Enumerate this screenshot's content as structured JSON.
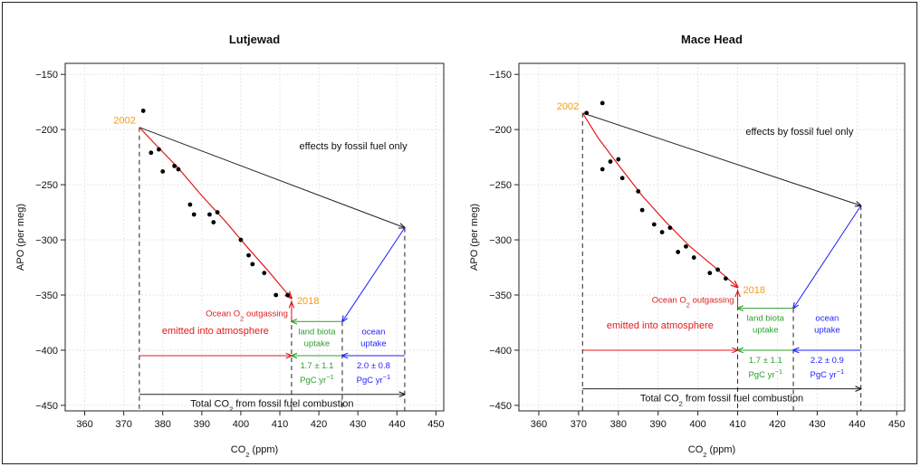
{
  "colors": {
    "fossil": "#222222",
    "atmosphere": "#e31a1c",
    "land": "#2ca02c",
    "ocean": "#1f1fff",
    "year": "#f39c12",
    "points": "#000000"
  },
  "chart_data": [
    {
      "type": "scatter",
      "title": "Lutjewad",
      "xlabel_main": "CO",
      "xlabel_sub": "2",
      "xlabel_unit": " (ppm)",
      "ylabel": "APO (per meg)",
      "xlim": [
        355,
        452
      ],
      "ylim": [
        -455,
        -140
      ],
      "xticks": [
        360,
        370,
        380,
        390,
        400,
        410,
        420,
        430,
        440,
        450
      ],
      "yticks": [
        -150,
        -200,
        -250,
        -300,
        -350,
        -400,
        -450
      ],
      "grid": true,
      "points": [
        {
          "x": 375,
          "y": -183
        },
        {
          "x": 377,
          "y": -221
        },
        {
          "x": 379,
          "y": -218
        },
        {
          "x": 380,
          "y": -238
        },
        {
          "x": 383,
          "y": -233
        },
        {
          "x": 384,
          "y": -236
        },
        {
          "x": 387,
          "y": -268
        },
        {
          "x": 388,
          "y": -277
        },
        {
          "x": 392,
          "y": -277
        },
        {
          "x": 393,
          "y": -284
        },
        {
          "x": 394,
          "y": -275
        },
        {
          "x": 400,
          "y": -300
        },
        {
          "x": 402,
          "y": -314
        },
        {
          "x": 403,
          "y": -322
        },
        {
          "x": 406,
          "y": -330
        },
        {
          "x": 409,
          "y": -350
        },
        {
          "x": 412,
          "y": -350
        }
      ],
      "fit_line": [
        [
          374,
          -198
        ],
        [
          378,
          -213
        ],
        [
          384,
          -235
        ],
        [
          390,
          -260
        ],
        [
          396,
          -283
        ],
        [
          402,
          -308
        ],
        [
          407,
          -328
        ],
        [
          411,
          -345
        ],
        [
          413,
          -353
        ]
      ],
      "start": {
        "x": 374,
        "y": -198,
        "label": "2002"
      },
      "end": {
        "x": 413,
        "y": -355,
        "label": "2018"
      },
      "fossil_end": {
        "x": 442,
        "y": -289
      },
      "ocean_corner": {
        "x": 426,
        "y": -374
      },
      "land_y": -374,
      "emit_y": -405,
      "total_y": -440,
      "labels": {
        "fossil_only": "effects by fossil fuel only",
        "outgassing_main": "Ocean O",
        "outgassing_sub": "2",
        "outgassing_rest": " outgassing",
        "emitted": "emitted into atmosphere",
        "land_1": "land biota",
        "land_2": "uptake",
        "land_val": "1.7 ± 1.1",
        "land_unit": "PgC yr",
        "unit_exp": "−1",
        "ocean_1": "ocean",
        "ocean_2": "uptake",
        "ocean_val": "2.0 ± 0.8",
        "ocean_unit": "PgC yr",
        "total_main": "Total CO",
        "total_sub": "2",
        "total_rest": " from fossil fuel combustion"
      }
    },
    {
      "type": "scatter",
      "title": "Mace Head",
      "xlabel_main": "CO",
      "xlabel_sub": "2",
      "xlabel_unit": " (ppm)",
      "ylabel": "APO (per meg)",
      "xlim": [
        355,
        452
      ],
      "ylim": [
        -455,
        -140
      ],
      "xticks": [
        360,
        370,
        380,
        390,
        400,
        410,
        420,
        430,
        440,
        450
      ],
      "yticks": [
        -150,
        -200,
        -250,
        -300,
        -350,
        -400,
        -450
      ],
      "grid": true,
      "points": [
        {
          "x": 372,
          "y": -185
        },
        {
          "x": 376,
          "y": -176
        },
        {
          "x": 376,
          "y": -236
        },
        {
          "x": 378,
          "y": -229
        },
        {
          "x": 380,
          "y": -227
        },
        {
          "x": 381,
          "y": -244
        },
        {
          "x": 385,
          "y": -256
        },
        {
          "x": 386,
          "y": -273
        },
        {
          "x": 389,
          "y": -286
        },
        {
          "x": 391,
          "y": -293
        },
        {
          "x": 393,
          "y": -289
        },
        {
          "x": 395,
          "y": -311
        },
        {
          "x": 397,
          "y": -306
        },
        {
          "x": 399,
          "y": -316
        },
        {
          "x": 403,
          "y": -330
        },
        {
          "x": 405,
          "y": -327
        },
        {
          "x": 407,
          "y": -335
        }
      ],
      "fit_line": [
        [
          371,
          -185
        ],
        [
          375,
          -208
        ],
        [
          380,
          -232
        ],
        [
          386,
          -260
        ],
        [
          392,
          -284
        ],
        [
          398,
          -306
        ],
        [
          404,
          -324
        ],
        [
          410,
          -343
        ]
      ],
      "start": {
        "x": 371,
        "y": -185,
        "label": "2002"
      },
      "end": {
        "x": 410,
        "y": -345,
        "label": "2018"
      },
      "fossil_end": {
        "x": 441,
        "y": -269
      },
      "ocean_corner": {
        "x": 424,
        "y": -362
      },
      "land_y": -362,
      "emit_y": -400,
      "total_y": -435,
      "labels": {
        "fossil_only": "effects by fossil fuel only",
        "outgassing_main": "Ocean O",
        "outgassing_sub": "2",
        "outgassing_rest": " outgassing",
        "emitted": "emitted into atmosphere",
        "land_1": "land biota",
        "land_2": "uptake",
        "land_val": "1.7 ± 1.1",
        "land_unit": "PgC yr",
        "unit_exp": "−1",
        "ocean_1": "ocean",
        "ocean_2": "uptake",
        "ocean_val": "2.2 ± 0.9",
        "ocean_unit": "PgC yr",
        "total_main": "Total CO",
        "total_sub": "2",
        "total_rest": " from fossil fuel combustion"
      }
    }
  ]
}
